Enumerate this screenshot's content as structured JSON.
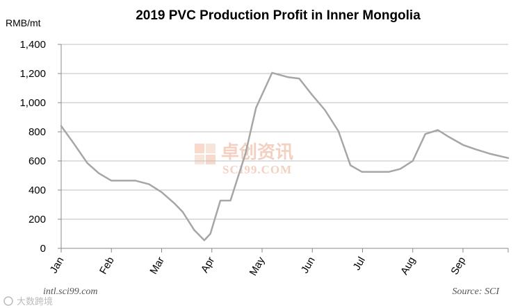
{
  "chart_data": {
    "type": "line",
    "title": "2019 PVC Production Profit in Inner Mongolia",
    "ylabel": "RMB/mt",
    "xlabel": "",
    "ylim": [
      0,
      1400
    ],
    "ytick_values": [
      0,
      200,
      400,
      600,
      800,
      1000,
      1200,
      1400
    ],
    "ytick_labels": [
      "0",
      "200",
      "400",
      "600",
      "800",
      "1,000",
      "1,200",
      "1,400"
    ],
    "grid": "horizontal",
    "xlim": [
      0,
      8.9
    ],
    "xtick_values": [
      0,
      1,
      2,
      3,
      4,
      5,
      6,
      7,
      8
    ],
    "xtick_labels": [
      "Jan",
      "Feb",
      "Mar",
      "Apr",
      "May",
      "Jun",
      "Jul",
      "Aug",
      "Sep"
    ],
    "series": [
      {
        "name": "PVC production profit",
        "color": "#a6a6a6",
        "x": [
          0,
          0.25,
          0.52,
          0.75,
          1.0,
          1.25,
          1.48,
          1.75,
          2.0,
          2.25,
          2.42,
          2.65,
          2.85,
          2.97,
          3.17,
          3.37,
          3.67,
          3.88,
          4.2,
          4.52,
          4.74,
          4.98,
          5.25,
          5.52,
          5.76,
          5.99,
          6.25,
          6.52,
          6.75,
          7.0,
          7.25,
          7.5,
          7.72,
          8.0,
          8.25,
          8.55,
          8.9
        ],
        "values": [
          840,
          720,
          585,
          515,
          465,
          465,
          465,
          440,
          385,
          310,
          250,
          125,
          55,
          100,
          328,
          328,
          650,
          965,
          1205,
          1175,
          1165,
          1060,
          950,
          805,
          570,
          525,
          525,
          525,
          545,
          600,
          785,
          812,
          765,
          710,
          680,
          648,
          620
        ]
      }
    ],
    "source": "Source: SCI",
    "watermark_url": "intl.sci99.com",
    "watermark_cn": "卓创资讯",
    "watermark_en": "SCI99.COM",
    "watermark_corner": "大数跨境"
  }
}
